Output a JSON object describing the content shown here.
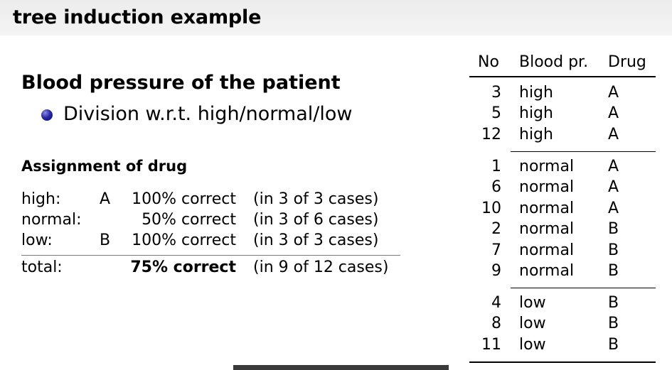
{
  "slide": {
    "title": "tree induction example",
    "heading": "Blood pressure of the patient",
    "bullet": "Division w.r.t. high/normal/low",
    "subheading": "Assignment of drug"
  },
  "assignment": {
    "rows": [
      {
        "label": "high:",
        "drug": "A",
        "percent": "100% correct",
        "cases": "(in 3 of 3 cases)"
      },
      {
        "label": "normal:",
        "drug": "",
        "percent": "50% correct",
        "cases": "(in 3 of 6 cases)"
      },
      {
        "label": "low:",
        "drug": "B",
        "percent": "100% correct",
        "cases": "(in 3 of 3 cases)"
      }
    ],
    "total": {
      "label": "total:",
      "percent": "75% correct",
      "cases": "(in 9 of 12 cases)"
    }
  },
  "table": {
    "headers": {
      "no": "No",
      "bp": "Blood pr.",
      "drug": "Drug"
    },
    "groups": [
      [
        {
          "no": "3",
          "bp": "high",
          "drug": "A"
        },
        {
          "no": "5",
          "bp": "high",
          "drug": "A"
        },
        {
          "no": "12",
          "bp": "high",
          "drug": "A"
        }
      ],
      [
        {
          "no": "1",
          "bp": "normal",
          "drug": "A"
        },
        {
          "no": "6",
          "bp": "normal",
          "drug": "A"
        },
        {
          "no": "10",
          "bp": "normal",
          "drug": "A"
        },
        {
          "no": "2",
          "bp": "normal",
          "drug": "B"
        },
        {
          "no": "7",
          "bp": "normal",
          "drug": "B"
        },
        {
          "no": "9",
          "bp": "normal",
          "drug": "B"
        }
      ],
      [
        {
          "no": "4",
          "bp": "low",
          "drug": "B"
        },
        {
          "no": "8",
          "bp": "low",
          "drug": "B"
        },
        {
          "no": "11",
          "bp": "low",
          "drug": "B"
        }
      ]
    ]
  }
}
